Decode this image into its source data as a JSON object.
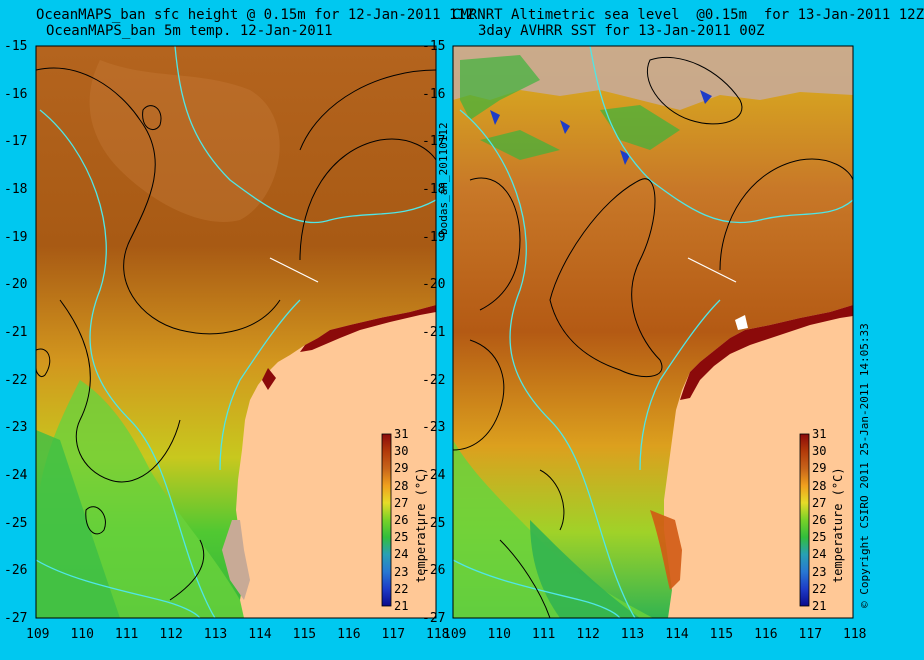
{
  "left_panel": {
    "title_line1": "OceanMAPS_ban sfc height @ 0.15m for 12-Jan-2011 11Z",
    "title_line2": "OceanMAPS_ban 5m temp. 12-Jan-2011",
    "side_label": "bodas_an_20110112"
  },
  "right_panel": {
    "title_line1": "CMRNRT Altimetric sea level  @0.15m  for 13-Jan-2011 12Z",
    "title_line2": "3day AVHRR SST for 13-Jan-2011 00Z",
    "side_label": "© Copyright CSIRO 2011   25-Jan-2011 14:05:33"
  },
  "axes": {
    "lat_ticks": [
      "-15",
      "-16",
      "-17",
      "-18",
      "-19",
      "-20",
      "-21",
      "-22",
      "-23",
      "-24",
      "-25",
      "-26",
      "-27"
    ],
    "lon_ticks": [
      "109",
      "110",
      "111",
      "112",
      "113",
      "114",
      "115",
      "116",
      "117",
      "118"
    ]
  },
  "colorbar": {
    "label": "temperature (°C)",
    "ticks": [
      "31",
      "30",
      "29",
      "28",
      "27",
      "26",
      "25",
      "24",
      "23",
      "22",
      "21"
    ],
    "colors": [
      "#8b0a0a",
      "#b23a0a",
      "#c8641a",
      "#dc8c1e",
      "#f0be1e",
      "#e6e628",
      "#8cdc28",
      "#3cc83c",
      "#28b4a0",
      "#287ad2",
      "#1e3cc8",
      "#0a0a96"
    ]
  },
  "colors": {
    "background": "#00c8f0",
    "land": "#ffc896",
    "contour": "#000000",
    "coast_isobath": "#50e6e6"
  }
}
